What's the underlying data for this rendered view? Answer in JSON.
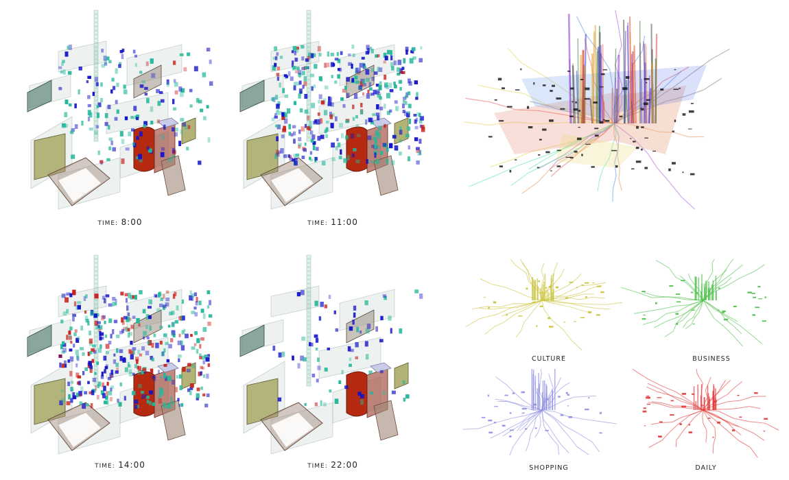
{
  "time_panels": [
    {
      "key": "TIME:",
      "time": "8:00",
      "density": 0.35,
      "red": 0.06
    },
    {
      "key": "TIME:",
      "time": "11:00",
      "density": 1.0,
      "red": 0.12
    },
    {
      "key": "TIME:",
      "time": "14:00",
      "density": 1.0,
      "red": 0.2
    },
    {
      "key": "TIME:",
      "time": "22:00",
      "density": 0.1,
      "red": 0.05
    }
  ],
  "categories": [
    {
      "label": "CULTURE",
      "color": "#c9c33a"
    },
    {
      "label": "BUSINESS",
      "color": "#4fbf4a"
    },
    {
      "label": "SHOPPING",
      "color": "#8e8fe0"
    },
    {
      "label": "DAILY",
      "color": "#e23a3a"
    }
  ],
  "colors": {
    "block_blue": "#1414c8",
    "block_teal": "#23b79a",
    "block_red": "#c8201a",
    "building_red": "#b52a10",
    "building_olive": "#9a9a4a",
    "building_taupe": "#a08878",
    "building_teal": "#3a6a5a"
  },
  "icons": [
    "time-block-diagram",
    "city-network-diagram",
    "category-network-diagram"
  ]
}
